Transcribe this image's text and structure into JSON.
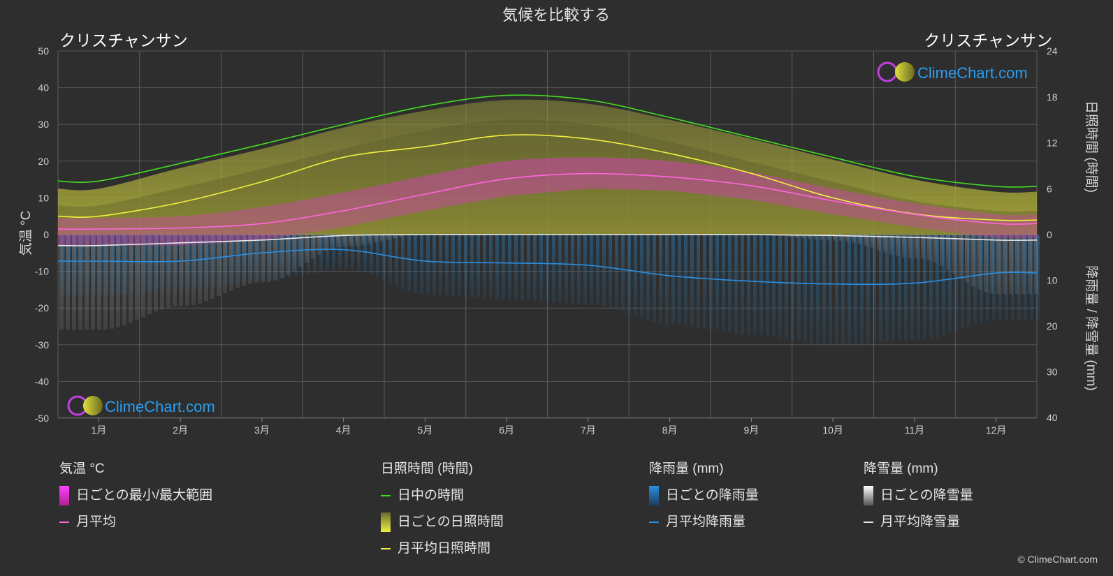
{
  "header": {
    "title": "気候を比較する",
    "city_left": "クリスチャンサン",
    "city_right": "クリスチャンサン"
  },
  "axes": {
    "left_label": "気温 °C",
    "right_top_label": "日照時間 (時間)",
    "right_bottom_label": "降雨量 / 降雪量 (mm)"
  },
  "logo": {
    "text": "ClimeChart.com"
  },
  "copyright": "© ClimeChart.com",
  "legend": {
    "temperature": {
      "title": "気温 °C",
      "range": "日ごとの最小/最大範囲",
      "avg": "月平均"
    },
    "sunshine": {
      "title": "日照時間 (時間)",
      "daylight": "日中の時間",
      "daily": "日ごとの日照時間",
      "avg": "月平均日照時間"
    },
    "rain": {
      "title": "降雨量 (mm)",
      "daily": "日ごとの降雨量",
      "avg": "月平均降雨量"
    },
    "snow": {
      "title": "降雪量 (mm)",
      "daily": "日ごとの降雪量",
      "avg": "月平均降雪量"
    }
  },
  "colors": {
    "background": "#2e2e2e",
    "grid": "#5a5a5a",
    "daylight": "#44dd22",
    "sunshine_avg": "#f0f040",
    "sunshine_fill": "#b8b83a",
    "temp_avg": "#ff66dd",
    "temp_range": "#e040c0",
    "rain_avg": "#2a8ee0",
    "rain_fill": "#2f6f9f",
    "snow_avg": "#e8e8e8",
    "snow_fill": "#8a8a8a",
    "logo_text": "#2a9ef0"
  },
  "chart_data": {
    "type": "line",
    "categories": [
      "1月",
      "2月",
      "3月",
      "4月",
      "5月",
      "6月",
      "7月",
      "8月",
      "9月",
      "10月",
      "11月",
      "12月"
    ],
    "left_axis": {
      "label": "気温 °C",
      "range": [
        -50,
        50
      ],
      "ticks": [
        50,
        40,
        30,
        20,
        10,
        0,
        -10,
        -20,
        -30,
        -40,
        -50
      ]
    },
    "right_axis_sunshine": {
      "label": "日照時間 (時間)",
      "range": [
        0,
        24
      ],
      "ticks": [
        24,
        18,
        12,
        6,
        0
      ]
    },
    "right_axis_precip": {
      "label": "降雨量 / 降雪量 (mm)",
      "range": [
        0,
        40
      ],
      "ticks": [
        0,
        10,
        20,
        30,
        40
      ]
    },
    "grid": true,
    "series": [
      {
        "name": "日中の時間",
        "axis": "sunshine",
        "values": [
          7.0,
          9.3,
          11.8,
          14.4,
          16.8,
          18.2,
          17.6,
          15.3,
          12.7,
          10.1,
          7.6,
          6.3
        ]
      },
      {
        "name": "月平均日照時間",
        "axis": "sunshine",
        "values": [
          2.4,
          4.2,
          6.9,
          10.1,
          11.5,
          13.0,
          12.5,
          10.6,
          8.0,
          4.8,
          2.7,
          1.9
        ]
      },
      {
        "name": "日ごとの日照時間",
        "axis": "sunshine",
        "values": [
          4.8,
          7.5,
          10.0,
          12.8,
          15.0,
          16.4,
          15.9,
          13.8,
          11.3,
          8.6,
          6.0,
          4.4
        ]
      },
      {
        "name": "月平均",
        "axis": "temperature",
        "values": [
          1.5,
          1.8,
          3.0,
          6.5,
          11.0,
          15.2,
          16.6,
          15.7,
          13.3,
          9.2,
          5.5,
          3.0
        ]
      },
      {
        "name": "日ごとの最小/最大範囲",
        "axis": "temperature",
        "min": [
          -3.0,
          -3.0,
          -1.5,
          2.0,
          6.5,
          10.5,
          12.5,
          12.0,
          9.5,
          5.5,
          2.0,
          -1.0
        ],
        "max": [
          4.5,
          5.0,
          7.5,
          11.5,
          16.0,
          20.0,
          21.0,
          20.0,
          17.0,
          12.5,
          8.5,
          5.5
        ]
      },
      {
        "name": "月平均降雨量",
        "axis": "precip",
        "values": [
          5.8,
          5.8,
          4.0,
          3.3,
          5.8,
          6.2,
          6.7,
          9.0,
          10.2,
          10.8,
          10.6,
          8.4
        ]
      },
      {
        "name": "日ごとの降雨量",
        "axis": "precip",
        "values": [
          6.0,
          5.5,
          4.5,
          3.5,
          6.0,
          6.5,
          7.0,
          9.0,
          10.0,
          11.0,
          10.5,
          8.5
        ]
      },
      {
        "name": "月平均降雪量",
        "axis": "precip",
        "values": [
          2.4,
          1.8,
          1.2,
          0.2,
          0.0,
          0.0,
          0.0,
          0.0,
          0.0,
          0.2,
          0.6,
          1.2
        ]
      },
      {
        "name": "日ごとの降雪量",
        "axis": "precip",
        "values": [
          8.0,
          6.0,
          4.0,
          1.0,
          0.0,
          0.0,
          0.0,
          0.0,
          0.0,
          0.5,
          2.0,
          5.0
        ]
      }
    ]
  }
}
